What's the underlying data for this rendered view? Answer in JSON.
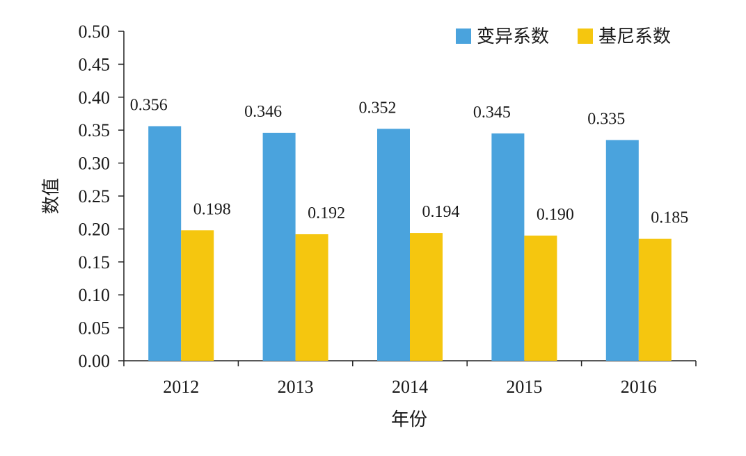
{
  "chart_data": {
    "type": "bar",
    "title": "",
    "xlabel": "年份",
    "ylabel": "数值",
    "categories": [
      "2012",
      "2013",
      "2014",
      "2015",
      "2016"
    ],
    "series": [
      {
        "name": "变异系数",
        "color": "#4aa3dd",
        "values": [
          0.356,
          0.346,
          0.352,
          0.345,
          0.335
        ],
        "labels": [
          "0.356",
          "0.346",
          "0.352",
          "0.345",
          "0.335"
        ]
      },
      {
        "name": "基尼系数",
        "color": "#f5c60f",
        "values": [
          0.198,
          0.192,
          0.194,
          0.19,
          0.185
        ],
        "labels": [
          "0.198",
          "0.192",
          "0.194",
          "0.190",
          "0.185"
        ]
      }
    ],
    "ylim": [
      0,
      0.5
    ],
    "yticks": [
      "0.00",
      "0.05",
      "0.10",
      "0.15",
      "0.20",
      "0.25",
      "0.30",
      "0.35",
      "0.40",
      "0.45",
      "0.50"
    ],
    "grid": false,
    "legend_position": "top-right"
  }
}
